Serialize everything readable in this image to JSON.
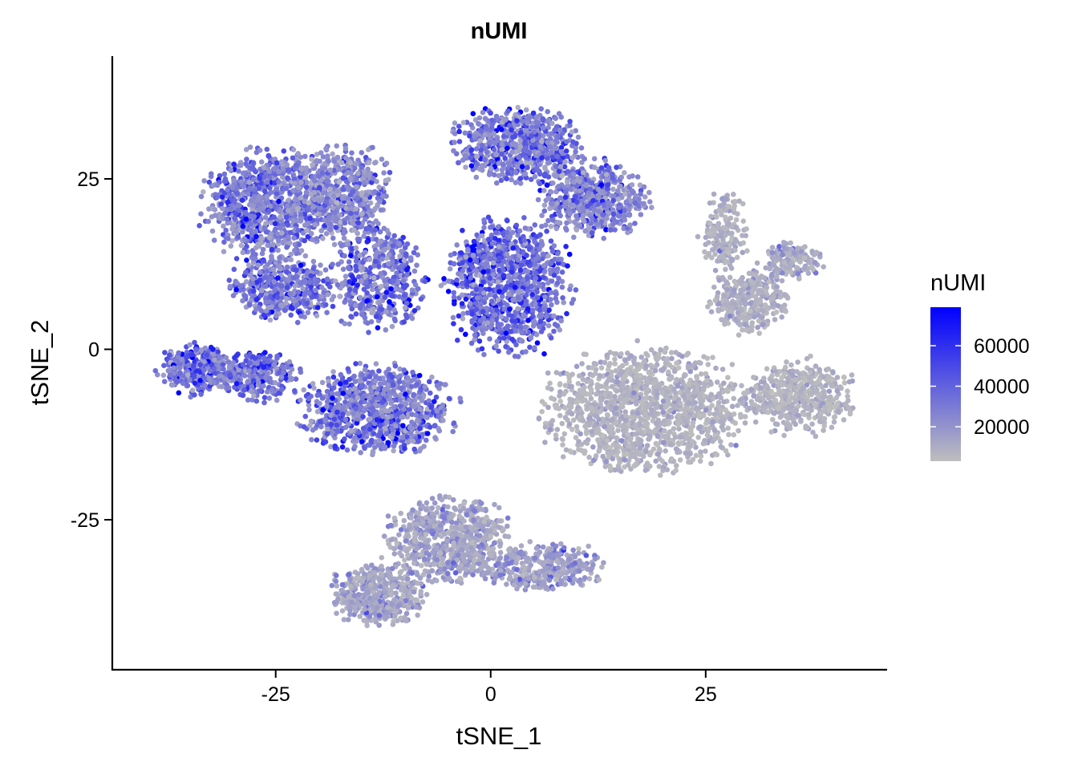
{
  "chart_data": {
    "type": "scatter",
    "title": "nUMI",
    "xlabel": "tSNE_1",
    "ylabel": "tSNE_2",
    "xlim": [
      -44,
      46
    ],
    "ylim": [
      -47,
      43
    ],
    "x_ticks": [
      -25,
      0,
      25
    ],
    "x_tick_labels": [
      "-25",
      "0",
      "25"
    ],
    "y_ticks": [
      -25,
      0,
      25
    ],
    "y_tick_labels": [
      "-25",
      "0",
      "25"
    ],
    "grid": false,
    "legend": {
      "title": "nUMI",
      "position": "right",
      "type": "colorbar",
      "range": [
        3000,
        79000
      ],
      "ticks": [
        20000,
        40000,
        60000
      ],
      "tick_labels": [
        "20000",
        "40000",
        "60000"
      ],
      "low_color": "#bebebe",
      "high_color": "#0000ff"
    },
    "clusters": [
      {
        "cx": -26,
        "cy": 21,
        "rx": 8,
        "ry": 9,
        "n": 900,
        "mean": 28000
      },
      {
        "cx": -17,
        "cy": 23,
        "rx": 6,
        "ry": 8,
        "n": 500,
        "mean": 25000
      },
      {
        "cx": -24,
        "cy": 9,
        "rx": 7,
        "ry": 5,
        "n": 420,
        "mean": 30000
      },
      {
        "cx": -34,
        "cy": -3,
        "rx": 5,
        "ry": 4,
        "n": 320,
        "mean": 34000
      },
      {
        "cx": -27,
        "cy": -4,
        "rx": 5,
        "ry": 4,
        "n": 260,
        "mean": 32000
      },
      {
        "cx": -13,
        "cy": -9,
        "rx": 10,
        "ry": 7,
        "n": 850,
        "mean": 30000
      },
      {
        "cx": -13,
        "cy": 10,
        "rx": 6,
        "ry": 8,
        "n": 420,
        "mean": 30000
      },
      {
        "cx": 2,
        "cy": 9,
        "rx": 8,
        "ry": 11,
        "n": 950,
        "mean": 35000
      },
      {
        "cx": 3,
        "cy": 30,
        "rx": 8,
        "ry": 6,
        "n": 650,
        "mean": 30000
      },
      {
        "cx": 12,
        "cy": 22,
        "rx": 7,
        "ry": 6,
        "n": 550,
        "mean": 26000
      },
      {
        "cx": 18,
        "cy": -9,
        "rx": 13,
        "ry": 10,
        "n": 1300,
        "mean": 7000
      },
      {
        "cx": 36,
        "cy": -7,
        "rx": 7,
        "ry": 6,
        "n": 450,
        "mean": 7000
      },
      {
        "cx": 30,
        "cy": 7,
        "rx": 5,
        "ry": 5,
        "n": 320,
        "mean": 8000
      },
      {
        "cx": 27,
        "cy": 17,
        "rx": 3,
        "ry": 7,
        "n": 170,
        "mean": 8000
      },
      {
        "cx": 35,
        "cy": 13,
        "rx": 4,
        "ry": 3,
        "n": 150,
        "mean": 11000
      },
      {
        "cx": -5,
        "cy": -28,
        "rx": 8,
        "ry": 7,
        "n": 650,
        "mean": 12000
      },
      {
        "cx": -13,
        "cy": -36,
        "rx": 6,
        "ry": 5,
        "n": 450,
        "mean": 13000
      },
      {
        "cx": 6,
        "cy": -32,
        "rx": 8,
        "ry": 4,
        "n": 320,
        "mean": 15000
      }
    ]
  }
}
